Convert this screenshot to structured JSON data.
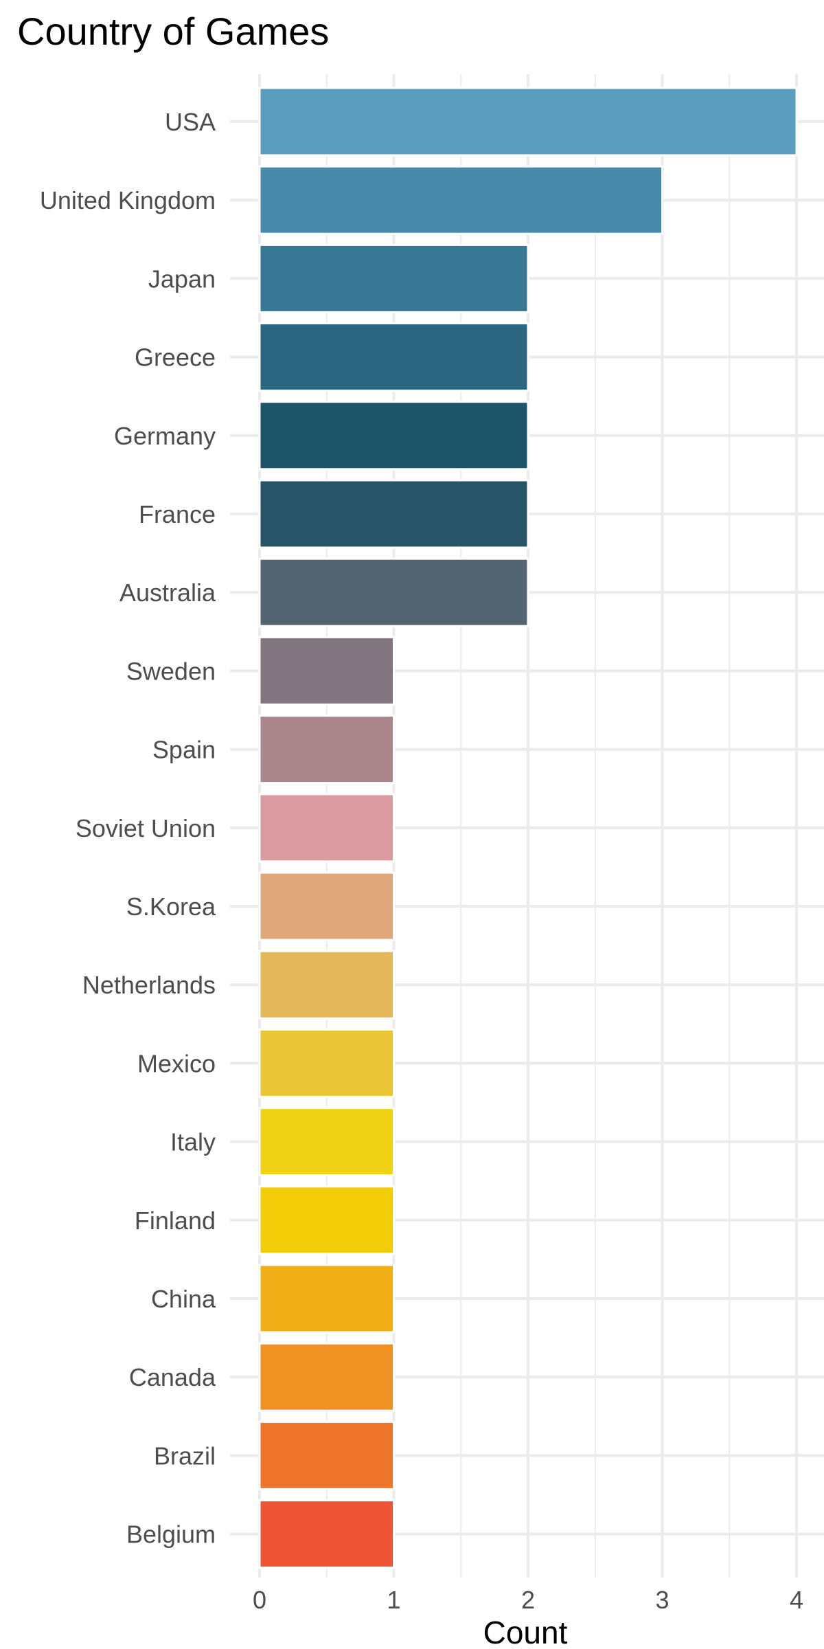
{
  "chart_data": {
    "type": "bar",
    "orientation": "horizontal",
    "title": "Country of Games",
    "xlabel": "Count",
    "ylabel": "",
    "xlim": [
      0,
      4.2
    ],
    "x_ticks": [
      0,
      1,
      2,
      3,
      4
    ],
    "grid": true,
    "legend": "none",
    "categories": [
      "USA",
      "United Kingdom",
      "Japan",
      "Greece",
      "Germany",
      "France",
      "Australia",
      "Sweden",
      "Spain",
      "Soviet Union",
      "S.Korea",
      "Netherlands",
      "Mexico",
      "Italy",
      "Finland",
      "China",
      "Canada",
      "Brazil",
      "Belgium"
    ],
    "values": [
      4,
      3,
      2,
      2,
      2,
      2,
      2,
      1,
      1,
      1,
      1,
      1,
      1,
      1,
      1,
      1,
      1,
      1,
      1
    ],
    "colors": [
      "#5b9dbe",
      "#4789a9",
      "#387793",
      "#2a667f",
      "#1c546a",
      "#285468",
      "#536473",
      "#81767f",
      "#aa868b",
      "#da9aa0",
      "#e0a77d",
      "#e3b75a",
      "#e9c434",
      "#efd213",
      "#f2cc06",
      "#f2ae16",
      "#f09123",
      "#ee742b",
      "#ee5536"
    ]
  }
}
